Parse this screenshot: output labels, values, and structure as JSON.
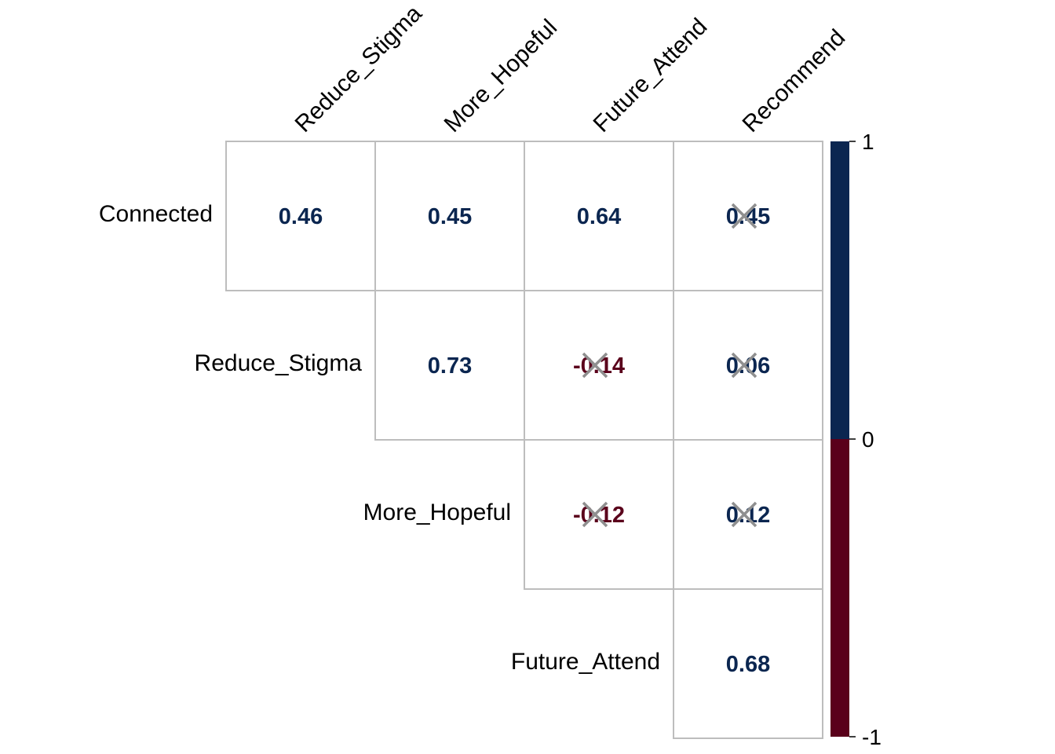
{
  "chart_data": {
    "type": "heatmap",
    "subtype": "upper-triangular correlation matrix with significance crosses",
    "rows": [
      "Connected",
      "Reduce_Stigma",
      "More_Hopeful",
      "Future_Attend"
    ],
    "columns": [
      "Reduce_Stigma",
      "More_Hopeful",
      "Future_Attend",
      "Recommend"
    ],
    "cells": [
      {
        "row": "Connected",
        "col": "Reduce_Stigma",
        "label": "0.46",
        "value": 0.46,
        "crossed": false
      },
      {
        "row": "Connected",
        "col": "More_Hopeful",
        "label": "0.45",
        "value": 0.45,
        "crossed": false
      },
      {
        "row": "Connected",
        "col": "Future_Attend",
        "label": "0.64",
        "value": 0.64,
        "crossed": false
      },
      {
        "row": "Connected",
        "col": "Recommend",
        "label": "0.45",
        "value": 0.45,
        "crossed": true
      },
      {
        "row": "Reduce_Stigma",
        "col": "More_Hopeful",
        "label": "0.73",
        "value": 0.73,
        "crossed": false
      },
      {
        "row": "Reduce_Stigma",
        "col": "Future_Attend",
        "label": "-0.14",
        "value": -0.14,
        "crossed": true
      },
      {
        "row": "Reduce_Stigma",
        "col": "Recommend",
        "label": "0.06",
        "value": 0.06,
        "crossed": true
      },
      {
        "row": "More_Hopeful",
        "col": "Future_Attend",
        "label": "-0.12",
        "value": -0.12,
        "crossed": true
      },
      {
        "row": "More_Hopeful",
        "col": "Recommend",
        "label": "0.12",
        "value": 0.12,
        "crossed": true
      },
      {
        "row": "Future_Attend",
        "col": "Recommend",
        "label": "0.68",
        "value": 0.68,
        "crossed": false
      }
    ],
    "colorbar": {
      "range": [
        -1,
        1
      ],
      "ticks": [
        "1",
        "0",
        "-1"
      ],
      "tick_values": [
        1,
        0,
        -1
      ],
      "positive_color": "#0b2650",
      "negative_color": "#5a001b"
    },
    "colors": {
      "positive_text": "#0b2650",
      "negative_text": "#5a001b",
      "grid": "#bdbdbd",
      "cross": "#8f8f8f"
    },
    "grid": true,
    "legend_placement": "right"
  }
}
